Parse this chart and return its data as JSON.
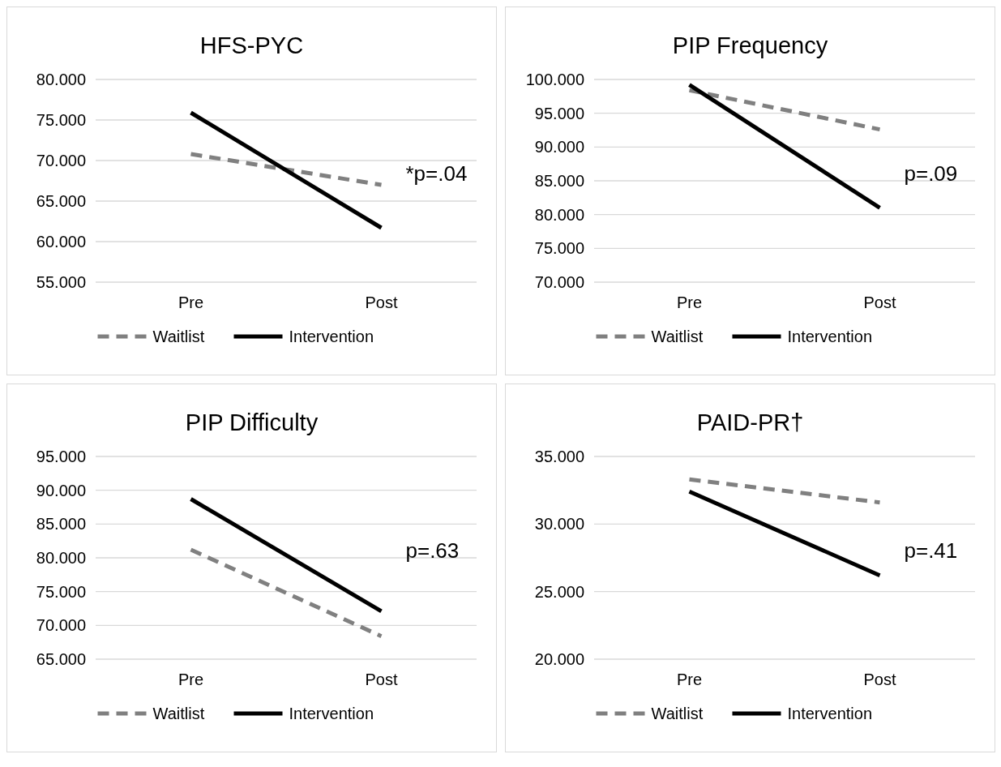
{
  "chart_data": [
    {
      "type": "line",
      "title": "HFS-PYC",
      "categories": [
        "Pre",
        "Post"
      ],
      "series": [
        {
          "name": "Waitlist",
          "color": "#808080",
          "line_style": "dashed",
          "values": [
            70.8,
            67.0
          ]
        },
        {
          "name": "Intervention",
          "color": "#000000",
          "line_style": "solid",
          "values": [
            75.9,
            61.7
          ]
        }
      ],
      "ylim": [
        55,
        80
      ],
      "yticks": [
        {
          "value": 55,
          "label": "55.000"
        },
        {
          "value": 60,
          "label": "60.000"
        },
        {
          "value": 65,
          "label": "65.000"
        },
        {
          "value": 70,
          "label": "70.000"
        },
        {
          "value": 75,
          "label": "75.000"
        },
        {
          "value": 80,
          "label": "80.000"
        }
      ],
      "grid": "y",
      "legend": "bottom",
      "marker": "none",
      "annotations": [
        "*p=.04"
      ]
    },
    {
      "type": "line",
      "title": "PIP Frequency",
      "categories": [
        "Pre",
        "Post"
      ],
      "series": [
        {
          "name": "Waitlist",
          "color": "#808080",
          "line_style": "dashed",
          "values": [
            98.4,
            92.6
          ]
        },
        {
          "name": "Intervention",
          "color": "#000000",
          "line_style": "solid",
          "values": [
            99.2,
            81.0
          ]
        }
      ],
      "ylim": [
        70,
        100
      ],
      "yticks": [
        {
          "value": 70,
          "label": "70.000"
        },
        {
          "value": 75,
          "label": "75.000"
        },
        {
          "value": 80,
          "label": "80.000"
        },
        {
          "value": 85,
          "label": "85.000"
        },
        {
          "value": 90,
          "label": "90.000"
        },
        {
          "value": 95,
          "label": "95.000"
        },
        {
          "value": 100,
          "label": "100.000"
        }
      ],
      "grid": "y",
      "legend": "bottom",
      "marker": "none",
      "annotations": [
        "p=.09"
      ]
    },
    {
      "type": "line",
      "title": "PIP Difficulty",
      "categories": [
        "Pre",
        "Post"
      ],
      "series": [
        {
          "name": "Waitlist",
          "color": "#808080",
          "line_style": "dashed",
          "values": [
            81.2,
            68.4
          ]
        },
        {
          "name": "Intervention",
          "color": "#000000",
          "line_style": "solid",
          "values": [
            88.7,
            72.1
          ]
        }
      ],
      "ylim": [
        65,
        95
      ],
      "yticks": [
        {
          "value": 65,
          "label": "65.000"
        },
        {
          "value": 70,
          "label": "70.000"
        },
        {
          "value": 75,
          "label": "75.000"
        },
        {
          "value": 80,
          "label": "80.000"
        },
        {
          "value": 85,
          "label": "85.000"
        },
        {
          "value": 90,
          "label": "90.000"
        },
        {
          "value": 95,
          "label": "95.000"
        }
      ],
      "grid": "y",
      "legend": "bottom",
      "marker": "none",
      "annotations": [
        "p=.63"
      ]
    },
    {
      "type": "line",
      "title": "PAID-PR†",
      "categories": [
        "Pre",
        "Post"
      ],
      "series": [
        {
          "name": "Waitlist",
          "color": "#808080",
          "line_style": "dashed",
          "values": [
            33.3,
            31.6
          ]
        },
        {
          "name": "Intervention",
          "color": "#000000",
          "line_style": "solid",
          "values": [
            32.4,
            26.2
          ]
        }
      ],
      "ylim": [
        20,
        35
      ],
      "yticks": [
        {
          "value": 20,
          "label": "20.000"
        },
        {
          "value": 25,
          "label": "25.000"
        },
        {
          "value": 30,
          "label": "30.000"
        },
        {
          "value": 35,
          "label": "35.000"
        }
      ],
      "grid": "y",
      "legend": "bottom",
      "marker": "none",
      "annotations": [
        "p=.41"
      ]
    }
  ]
}
